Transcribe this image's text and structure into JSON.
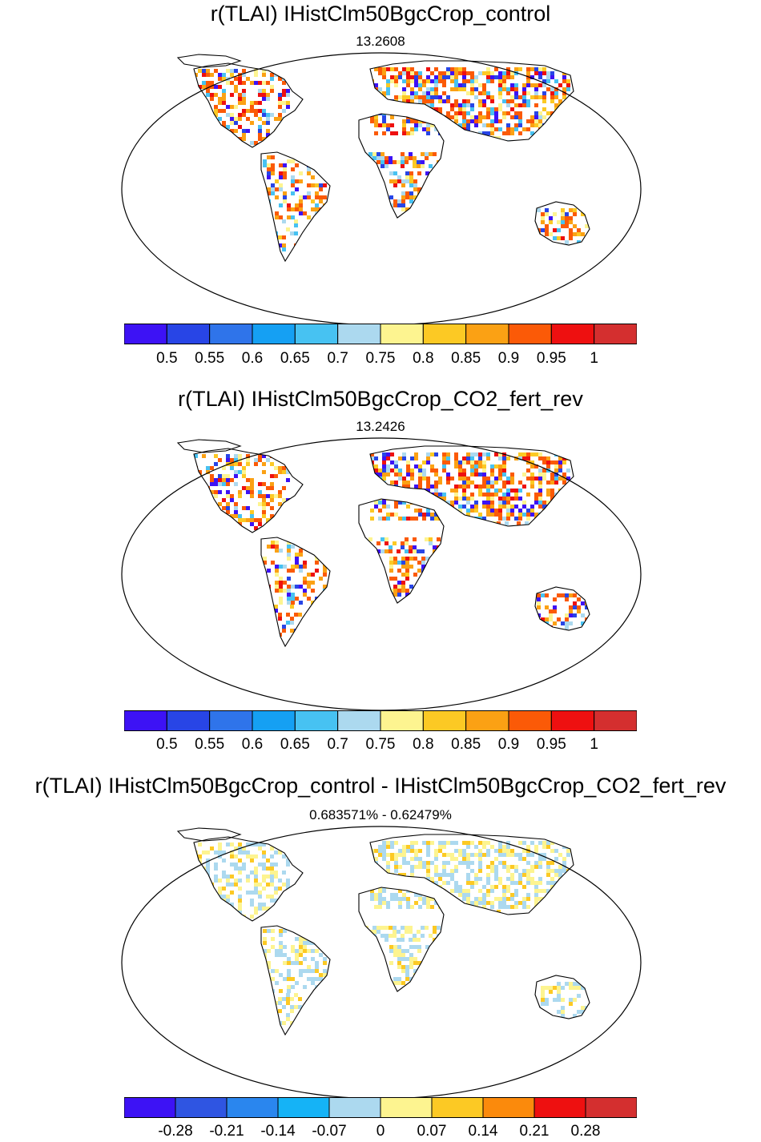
{
  "panels": [
    {
      "title": "r(TLAI) IHistClm50BgcCrop_control",
      "subtitle": "13.2608",
      "colorbar": {
        "colors": [
          "#3d12f5",
          "#2845e6",
          "#2f74ea",
          "#15a0f3",
          "#47c2f2",
          "#acd9ef",
          "#fdf490",
          "#fcc924",
          "#fba114",
          "#fb5a07",
          "#ee1010",
          "#d42f2f"
        ],
        "tick_labels": [
          "0.5",
          "0.55",
          "0.6",
          "0.65",
          "0.7",
          "0.75",
          "0.8",
          "0.85",
          "0.9",
          "0.95",
          "1"
        ]
      }
    },
    {
      "title": "r(TLAI) IHistClm50BgcCrop_CO2_fert_rev",
      "subtitle": "13.2426",
      "colorbar": {
        "colors": [
          "#3d12f5",
          "#2845e6",
          "#2f74ea",
          "#15a0f3",
          "#47c2f2",
          "#acd9ef",
          "#fdf490",
          "#fcc924",
          "#fba114",
          "#fb5a07",
          "#ee1010",
          "#d42f2f"
        ],
        "tick_labels": [
          "0.5",
          "0.55",
          "0.6",
          "0.65",
          "0.7",
          "0.75",
          "0.8",
          "0.85",
          "0.9",
          "0.95",
          "1"
        ]
      }
    },
    {
      "title": "r(TLAI) IHistClm50BgcCrop_control - IHistClm50BgcCrop_CO2_fert_rev",
      "subtitle": "0.683571% - 0.62479%",
      "colorbar": {
        "colors": [
          "#3d12f5",
          "#2f55e2",
          "#2a86ee",
          "#15b3f6",
          "#acd9ef",
          "#fdf490",
          "#fcc924",
          "#fb8a0c",
          "#ee1010",
          "#d42f2f"
        ],
        "tick_labels": [
          "-0.28",
          "-0.21",
          "-0.14",
          "-0.07",
          "0",
          "0.07",
          "0.14",
          "0.21",
          "0.28"
        ]
      }
    }
  ]
}
